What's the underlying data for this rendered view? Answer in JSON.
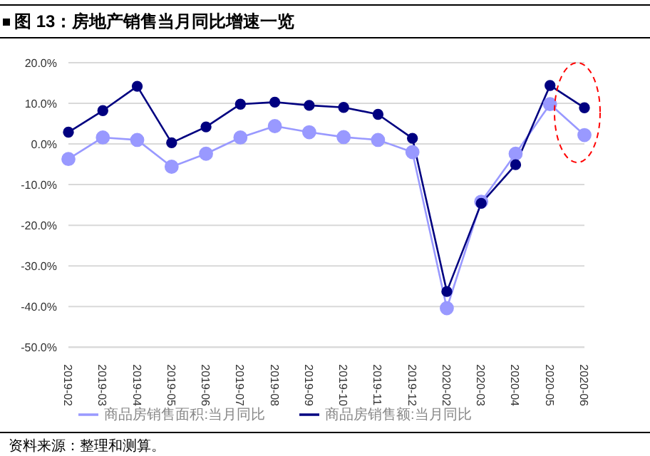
{
  "chart_data": {
    "type": "line",
    "title": "图 13：房地产销售当月同比增速一览",
    "annotations": [
      "资料来源：整理和测算。"
    ],
    "categories": [
      "2019-02",
      "2019-03",
      "2019-04",
      "2019-05",
      "2019-06",
      "2019-07",
      "2019-08",
      "2019-09",
      "2019-10",
      "2019-11",
      "2019-12",
      "2020-02",
      "2020-03",
      "2020-04",
      "2020-05",
      "2020-06"
    ],
    "series": [
      {
        "name": "商品房销售面积:当月同比",
        "color": "#9999ff",
        "values": [
          -3.7,
          1.6,
          1.0,
          -5.6,
          -2.4,
          1.6,
          4.4,
          2.9,
          1.7,
          1.0,
          -2.0,
          -40.4,
          -14.2,
          -2.4,
          9.8,
          2.2
        ]
      },
      {
        "name": "商品房销售额:当月同比",
        "color": "#000080",
        "values": [
          2.9,
          8.2,
          14.2,
          0.3,
          4.2,
          9.8,
          10.3,
          9.5,
          9.0,
          7.3,
          1.4,
          -36.3,
          -14.6,
          -5.1,
          14.4,
          8.9
        ]
      }
    ],
    "ylim": [
      -50,
      20
    ],
    "yticks": [
      {
        "value": -50,
        "label": "-50.0%"
      },
      {
        "value": -40,
        "label": "-40.0%"
      },
      {
        "value": -30,
        "label": "-30.0%"
      },
      {
        "value": -20,
        "label": "-20.0%"
      },
      {
        "value": -10,
        "label": "-10.0%"
      },
      {
        "value": 0,
        "label": "0.0%"
      },
      {
        "value": 10,
        "label": "10.0%"
      },
      {
        "value": 20,
        "label": "20.0%"
      }
    ],
    "grid": "y",
    "legend": "bottom",
    "marker": "circle",
    "line_style": "solid"
  }
}
